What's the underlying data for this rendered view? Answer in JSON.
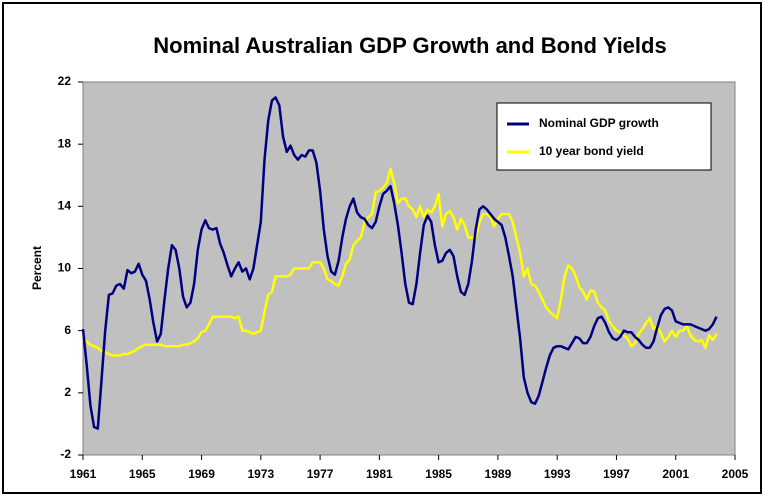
{
  "chart_data": {
    "type": "line",
    "title": "Nominal Australian GDP Growth and Bond Yields",
    "y_label": "Percent",
    "x": [
      1961,
      1961.25,
      1961.5,
      1961.75,
      1962,
      1962.25,
      1962.5,
      1962.75,
      1963,
      1963.25,
      1963.5,
      1963.75,
      1964,
      1964.25,
      1964.5,
      1964.75,
      1965,
      1965.25,
      1965.5,
      1965.75,
      1966,
      1966.25,
      1966.5,
      1966.75,
      1967,
      1967.25,
      1967.5,
      1967.75,
      1968,
      1968.25,
      1968.5,
      1968.75,
      1969,
      1969.25,
      1969.5,
      1969.75,
      1970,
      1970.25,
      1970.5,
      1970.75,
      1971,
      1971.25,
      1971.5,
      1971.75,
      1972,
      1972.25,
      1972.5,
      1972.75,
      1973,
      1973.25,
      1973.5,
      1973.75,
      1974,
      1974.25,
      1974.5,
      1974.75,
      1975,
      1975.25,
      1975.5,
      1975.75,
      1976,
      1976.25,
      1976.5,
      1976.75,
      1977,
      1977.25,
      1977.5,
      1977.75,
      1978,
      1978.25,
      1978.5,
      1978.75,
      1979,
      1979.25,
      1979.5,
      1979.75,
      1980,
      1980.25,
      1980.5,
      1980.75,
      1981,
      1981.25,
      1981.5,
      1981.75,
      1982,
      1982.25,
      1982.5,
      1982.75,
      1983,
      1983.25,
      1983.5,
      1983.75,
      1984,
      1984.25,
      1984.5,
      1984.75,
      1985,
      1985.25,
      1985.5,
      1985.75,
      1986,
      1986.25,
      1986.5,
      1986.75,
      1987,
      1987.25,
      1987.5,
      1987.75,
      1988,
      1988.25,
      1988.5,
      1988.75,
      1989,
      1989.25,
      1989.5,
      1989.75,
      1990,
      1990.25,
      1990.5,
      1990.75,
      1991,
      1991.25,
      1991.5,
      1991.75,
      1992,
      1992.25,
      1992.5,
      1992.75,
      1993,
      1993.25,
      1993.5,
      1993.75,
      1994,
      1994.25,
      1994.5,
      1994.75,
      1995,
      1995.25,
      1995.5,
      1995.75,
      1996,
      1996.25,
      1996.5,
      1996.75,
      1997,
      1997.25,
      1997.5,
      1997.75,
      1998,
      1998.25,
      1998.5,
      1998.75,
      1999,
      1999.25,
      1999.5,
      1999.75,
      2000,
      2000.25,
      2000.5,
      2000.75,
      2001,
      2001.25,
      2001.5,
      2001.75,
      2002,
      2002.25,
      2002.5,
      2002.75,
      2003,
      2003.25,
      2003.5,
      2003.75
    ],
    "series": [
      {
        "name": "Nominal GDP growth",
        "color": "#000080",
        "values": [
          6.1,
          3.8,
          1.2,
          -0.2,
          -0.3,
          2.8,
          6.0,
          8.3,
          8.4,
          8.9,
          9.0,
          8.7,
          9.9,
          9.7,
          9.8,
          10.3,
          9.6,
          9.2,
          8.0,
          6.5,
          5.3,
          5.8,
          8.0,
          10.0,
          11.5,
          11.2,
          10.0,
          8.2,
          7.5,
          7.8,
          9.0,
          11.2,
          12.5,
          13.1,
          12.6,
          12.5,
          12.6,
          11.6,
          11.0,
          10.2,
          9.5,
          10.0,
          10.4,
          9.8,
          10.0,
          9.3,
          10.0,
          11.5,
          13.0,
          17.0,
          19.5,
          20.8,
          21.0,
          20.5,
          18.5,
          17.5,
          17.9,
          17.3,
          17.0,
          17.3,
          17.2,
          17.6,
          17.6,
          16.8,
          15.0,
          12.5,
          10.8,
          9.8,
          9.6,
          10.5,
          12.0,
          13.2,
          14.0,
          14.5,
          13.6,
          13.3,
          13.2,
          12.8,
          12.6,
          13.0,
          14.0,
          14.8,
          15.0,
          15.3,
          14.2,
          12.8,
          11.0,
          9.0,
          7.8,
          7.7,
          9.0,
          11.0,
          12.8,
          13.4,
          13.0,
          11.5,
          10.4,
          10.5,
          11.0,
          11.2,
          10.8,
          9.5,
          8.5,
          8.3,
          9.0,
          10.5,
          12.5,
          13.8,
          14.0,
          13.8,
          13.5,
          13.2,
          13.0,
          12.8,
          12.0,
          10.8,
          9.5,
          7.5,
          5.5,
          3.0,
          2.0,
          1.4,
          1.3,
          1.8,
          2.7,
          3.6,
          4.4,
          4.9,
          5.0,
          5.0,
          4.9,
          4.8,
          5.2,
          5.6,
          5.5,
          5.2,
          5.2,
          5.6,
          6.3,
          6.8,
          6.9,
          6.5,
          5.9,
          5.5,
          5.4,
          5.6,
          6.0,
          5.9,
          5.9,
          5.6,
          5.4,
          5.1,
          4.9,
          4.9,
          5.3,
          6.2,
          7.0,
          7.4,
          7.5,
          7.3,
          6.6,
          6.5,
          6.4,
          6.4,
          6.4,
          6.3,
          6.2,
          6.1,
          6.0,
          6.1,
          6.4,
          6.9
        ]
      },
      {
        "name": "10 year bond yield",
        "color": "#ffff00",
        "values": [
          5.4,
          5.3,
          5.1,
          5.0,
          4.9,
          4.7,
          4.6,
          4.5,
          4.4,
          4.4,
          4.4,
          4.5,
          4.5,
          4.6,
          4.7,
          4.9,
          5.0,
          5.1,
          5.1,
          5.1,
          5.1,
          5.1,
          5.0,
          5.0,
          5.0,
          5.0,
          5.0,
          5.1,
          5.1,
          5.2,
          5.3,
          5.5,
          5.9,
          6.0,
          6.4,
          6.9,
          6.9,
          6.9,
          6.9,
          6.9,
          6.9,
          6.8,
          6.9,
          6.0,
          6.0,
          5.9,
          5.8,
          5.9,
          6.0,
          7.2,
          8.3,
          8.5,
          9.5,
          9.5,
          9.5,
          9.5,
          9.6,
          10.0,
          10.0,
          10.0,
          10.0,
          10.0,
          10.4,
          10.4,
          10.4,
          10.0,
          9.3,
          9.2,
          9.0,
          8.9,
          9.5,
          10.3,
          10.6,
          11.5,
          11.8,
          12.0,
          13.0,
          13.3,
          13.5,
          14.9,
          15.0,
          15.2,
          15.5,
          16.4,
          15.5,
          14.2,
          14.5,
          14.5,
          14.0,
          13.8,
          13.3,
          14.0,
          13.3,
          13.8,
          13.6,
          14.0,
          14.8,
          12.7,
          13.5,
          13.7,
          13.3,
          12.5,
          13.2,
          12.8,
          12.0,
          12.0,
          12.0,
          13.0,
          13.5,
          13.5,
          13.3,
          12.7,
          13.2,
          13.5,
          13.5,
          13.5,
          13.0,
          12.0,
          11.0,
          9.5,
          10.0,
          9.0,
          8.9,
          8.5,
          8.0,
          7.5,
          7.2,
          7.0,
          6.8,
          8.0,
          9.5,
          10.2,
          10.0,
          9.5,
          8.8,
          8.5,
          8.0,
          8.6,
          8.5,
          7.8,
          7.5,
          7.3,
          6.6,
          6.3,
          6.0,
          5.9,
          5.7,
          5.5,
          5.0,
          5.2,
          5.8,
          6.1,
          6.5,
          6.8,
          6.1,
          6.3,
          5.8,
          5.3,
          5.6,
          6.0,
          5.6,
          6.0,
          6.0,
          6.3,
          5.7,
          5.4,
          5.3,
          5.4,
          4.9,
          5.7,
          5.4,
          5.8
        ]
      }
    ],
    "xlim": [
      1961,
      2005
    ],
    "xticks": [
      1961,
      1965,
      1969,
      1973,
      1977,
      1981,
      1985,
      1989,
      1993,
      1997,
      2001,
      2005
    ],
    "ylim": [
      -2,
      22
    ],
    "yticks": [
      -2,
      2,
      6,
      10,
      14,
      18,
      22
    ],
    "legend": "upper right",
    "grid": false
  }
}
